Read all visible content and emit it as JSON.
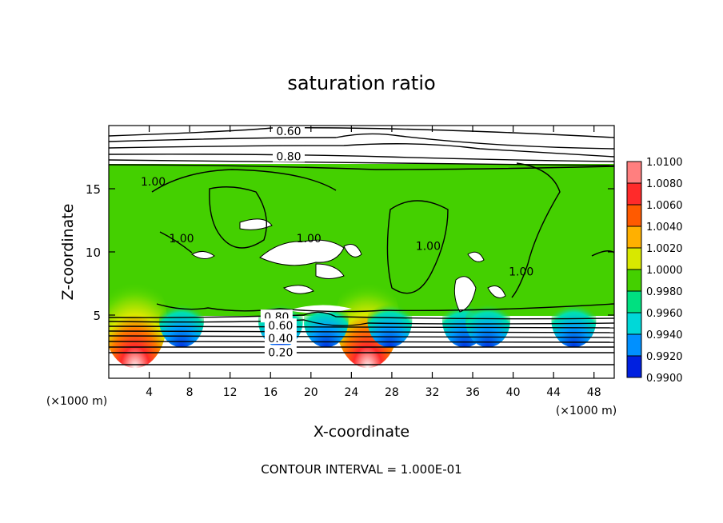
{
  "chart_data": {
    "type": "heatmap",
    "title": "saturation ratio",
    "xlabel": "X-coordinate",
    "ylabel": "Z-coordinate",
    "x_unit_left": "(×1000 m)",
    "x_unit_right": "(×1000 m)",
    "xlim": [
      0,
      50
    ],
    "ylim": [
      0,
      20
    ],
    "xticks": [
      4,
      8,
      12,
      16,
      20,
      24,
      28,
      32,
      36,
      40,
      44,
      48
    ],
    "xtick_labels": [
      "4",
      "8",
      "12",
      "16",
      "20",
      "24",
      "28",
      "32",
      "36",
      "40",
      "44",
      "48"
    ],
    "yticks": [
      5,
      10,
      15
    ],
    "ytick_labels": [
      "5",
      "10",
      "15"
    ],
    "colorbar": {
      "levels": [
        "1.0100",
        "1.0080",
        "1.0060",
        "1.0040",
        "1.0020",
        "1.0000",
        "0.9980",
        "0.9960",
        "0.9940",
        "0.9920",
        "0.9900"
      ],
      "colors": [
        "#ff7f7f",
        "#ff2a2a",
        "#ff5a00",
        "#ffb000",
        "#d8e800",
        "#44d000",
        "#00e080",
        "#00d8d8",
        "#0090ff",
        "#0020e0",
        "#5010a0"
      ]
    },
    "contour_labels": [
      {
        "text": "0.60",
        "x": 17.8,
        "y": 19.5
      },
      {
        "text": "0.80",
        "x": 17.8,
        "y": 17.5
      },
      {
        "text": "1.00",
        "x": 4.4,
        "y": 15.5
      },
      {
        "text": "1.00",
        "x": 7.2,
        "y": 11.0
      },
      {
        "text": "1.00",
        "x": 19.8,
        "y": 11.0
      },
      {
        "text": "1.00",
        "x": 31.6,
        "y": 10.4
      },
      {
        "text": "1.00",
        "x": 40.8,
        "y": 8.4
      },
      {
        "text": "0.80",
        "x": 16.6,
        "y": 4.8
      },
      {
        "text": "0.60",
        "x": 17.0,
        "y": 4.1
      },
      {
        "text": "0.40",
        "x": 17.0,
        "y": 3.1
      },
      {
        "text": "0.20",
        "x": 17.0,
        "y": 2.0
      }
    ],
    "max_regions": [
      {
        "x": 2.6,
        "note": "red"
      },
      {
        "x": 25.6,
        "note": "red"
      }
    ],
    "footer": "CONTOUR INTERVAL = 1.000E-01"
  }
}
